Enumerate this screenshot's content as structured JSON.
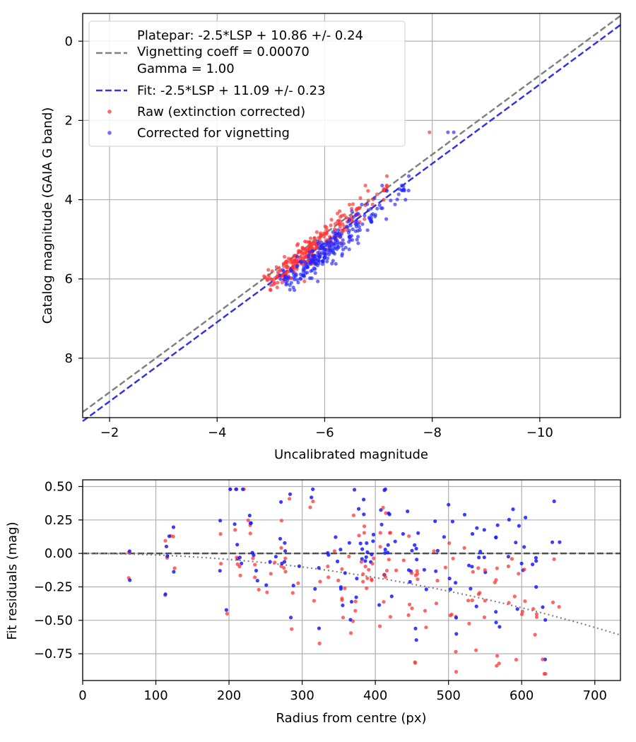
{
  "chart_data": [
    {
      "type": "scatter",
      "xlabel": "Uncalibrated magnitude",
      "ylabel": "Catalog magnitude (GAIA G band)",
      "xlim": [
        -1.5,
        -11.5
      ],
      "ylim": [
        9.5,
        -0.7
      ],
      "x_inverted": true,
      "y_inverted": true,
      "grid": true,
      "xticks": [
        -2,
        -4,
        -6,
        -8,
        -10
      ],
      "xtick_labels": [
        "−2",
        "−4",
        "−6",
        "−8",
        "−10"
      ],
      "yticks": [
        0,
        2,
        4,
        6,
        8
      ],
      "ytick_labels": [
        "0",
        "2",
        "4",
        "6",
        "8"
      ],
      "legend": {
        "placement": "top-left",
        "entries": [
          {
            "lines": [
              "Platepar: -2.5*LSP + 10.86 +/- 0.24",
              "Vignetting coeff = 0.00070",
              "Gamma = 1.00"
            ],
            "style": "dashed-line",
            "color": "#808080"
          },
          {
            "lines": [
              "Fit: -2.5*LSP + 11.09 +/- 0.23"
            ],
            "style": "dashed-line",
            "color": "#3333e0"
          },
          {
            "lines": [
              "Raw (extinction corrected)"
            ],
            "style": "marker",
            "color": "#ff3333"
          },
          {
            "lines": [
              "Corrected for vignetting"
            ],
            "style": "marker",
            "color": "#3333ff"
          }
        ]
      },
      "lines": [
        {
          "name": "Platepar",
          "x_range": [
            -1.5,
            -11.5
          ],
          "slope": 1.0,
          "intercept": 10.86,
          "color": "#808080"
        },
        {
          "name": "Fit",
          "x_range": [
            -1.5,
            -11.5
          ],
          "slope": 1.0,
          "intercept": 11.09,
          "color": "#3333e0"
        }
      ],
      "series": [
        {
          "name": "Raw (extinction corrected)",
          "color": "#ff3333"
        },
        {
          "name": "Corrected for vignetting",
          "color": "#2222ff"
        }
      ]
    },
    {
      "type": "scatter",
      "xlabel": "Radius from centre (px)",
      "ylabel": "Fit residuals (mag)",
      "xlim": [
        0,
        735
      ],
      "ylim": [
        -0.95,
        0.55
      ],
      "grid": true,
      "xticks": [
        0,
        100,
        200,
        300,
        400,
        500,
        600,
        700
      ],
      "xtick_labels": [
        "0",
        "100",
        "200",
        "300",
        "400",
        "500",
        "600",
        "700"
      ],
      "yticks": [
        0.5,
        0.25,
        0,
        -0.25,
        -0.5,
        -0.75
      ],
      "ytick_labels": [
        "0.50",
        "0.25",
        "0.00",
        "−0.25",
        "−0.50",
        "−0.75"
      ],
      "reference_lines": [
        {
          "name": "zero",
          "y": 0,
          "style": "dashed",
          "color": "#505050"
        },
        {
          "name": "vignetting model",
          "style": "dotted",
          "color": "#808080",
          "x": [
            0,
            735
          ],
          "y_at_end": -0.61
        }
      ],
      "series": [
        {
          "name": "Raw (extinction corrected)",
          "color": "#ff3333"
        },
        {
          "name": "Corrected for vignetting",
          "color": "#1a1aff"
        }
      ]
    }
  ]
}
